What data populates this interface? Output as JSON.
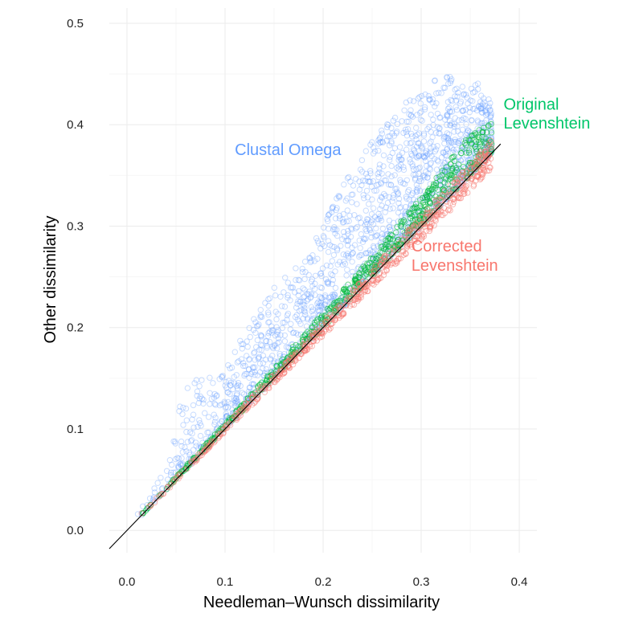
{
  "chart_data": {
    "type": "scatter",
    "xlabel": "Needleman–Wunsch dissimilarity",
    "ylabel": "Other dissimilarity",
    "xlim": [
      -0.018,
      0.418
    ],
    "ylim": [
      -0.022,
      0.515
    ],
    "x_ticks": [
      "0.0",
      "0.1",
      "0.2",
      "0.3",
      "0.4"
    ],
    "y_ticks": [
      "0.0",
      "0.1",
      "0.2",
      "0.3",
      "0.4",
      "0.5"
    ],
    "grid": true,
    "legend": "none",
    "reference_line": {
      "slope": 1,
      "intercept": 0,
      "x_range": [
        -0.018,
        0.381
      ]
    },
    "series": [
      {
        "name": "Clustal Omega",
        "color": "#619CFF",
        "marker": "open-circle",
        "bands": [
          {
            "x": 0.005,
            "y_min": 0.005,
            "y_max": 0.006
          },
          {
            "x": 0.02,
            "y_min": 0.02,
            "y_max": 0.032
          },
          {
            "x": 0.04,
            "y_min": 0.04,
            "y_max": 0.06
          },
          {
            "x": 0.06,
            "y_min": 0.06,
            "y_max": 0.15
          },
          {
            "x": 0.08,
            "y_min": 0.08,
            "y_max": 0.15
          },
          {
            "x": 0.1,
            "y_min": 0.1,
            "y_max": 0.16
          },
          {
            "x": 0.12,
            "y_min": 0.12,
            "y_max": 0.195
          },
          {
            "x": 0.14,
            "y_min": 0.14,
            "y_max": 0.23
          },
          {
            "x": 0.16,
            "y_min": 0.16,
            "y_max": 0.25
          },
          {
            "x": 0.18,
            "y_min": 0.18,
            "y_max": 0.27
          },
          {
            "x": 0.2,
            "y_min": 0.2,
            "y_max": 0.3
          },
          {
            "x": 0.22,
            "y_min": 0.22,
            "y_max": 0.34
          },
          {
            "x": 0.24,
            "y_min": 0.24,
            "y_max": 0.37
          },
          {
            "x": 0.26,
            "y_min": 0.26,
            "y_max": 0.4
          },
          {
            "x": 0.28,
            "y_min": 0.28,
            "y_max": 0.42
          },
          {
            "x": 0.3,
            "y_min": 0.3,
            "y_max": 0.43
          },
          {
            "x": 0.32,
            "y_min": 0.32,
            "y_max": 0.45
          },
          {
            "x": 0.34,
            "y_min": 0.34,
            "y_max": 0.445
          },
          {
            "x": 0.36,
            "y_min": 0.36,
            "y_max": 0.44
          },
          {
            "x": 0.372,
            "y_min": 0.372,
            "y_max": 0.42
          }
        ]
      },
      {
        "name": "Original Levenshtein",
        "color": "#00BA38",
        "marker": "open-circle",
        "bands": [
          {
            "x": 0.005,
            "y_min": 0.005,
            "y_max": 0.005
          },
          {
            "x": 0.05,
            "y_min": 0.05,
            "y_max": 0.053
          },
          {
            "x": 0.1,
            "y_min": 0.1,
            "y_max": 0.106
          },
          {
            "x": 0.15,
            "y_min": 0.15,
            "y_max": 0.16
          },
          {
            "x": 0.2,
            "y_min": 0.2,
            "y_max": 0.215
          },
          {
            "x": 0.25,
            "y_min": 0.25,
            "y_max": 0.27
          },
          {
            "x": 0.3,
            "y_min": 0.3,
            "y_max": 0.33
          },
          {
            "x": 0.35,
            "y_min": 0.35,
            "y_max": 0.39
          },
          {
            "x": 0.372,
            "y_min": 0.372,
            "y_max": 0.405
          }
        ]
      },
      {
        "name": "Corrected Levenshtein",
        "color": "#F8766D",
        "marker": "open-circle",
        "bands": [
          {
            "x": 0.01,
            "y_min": 0.01,
            "y_max": 0.012
          },
          {
            "x": 0.05,
            "y_min": 0.048,
            "y_max": 0.052
          },
          {
            "x": 0.1,
            "y_min": 0.097,
            "y_max": 0.103
          },
          {
            "x": 0.15,
            "y_min": 0.145,
            "y_max": 0.155
          },
          {
            "x": 0.2,
            "y_min": 0.192,
            "y_max": 0.206
          },
          {
            "x": 0.25,
            "y_min": 0.24,
            "y_max": 0.258
          },
          {
            "x": 0.3,
            "y_min": 0.287,
            "y_max": 0.31
          },
          {
            "x": 0.35,
            "y_min": 0.335,
            "y_max": 0.362
          },
          {
            "x": 0.372,
            "y_min": 0.356,
            "y_max": 0.385
          }
        ]
      }
    ],
    "annotations": [
      {
        "text": "Clustal Omega",
        "color": "#619CFF",
        "x": 0.11,
        "y": 0.37
      },
      {
        "text": "Original",
        "color": "#00C66A",
        "x": 0.384,
        "y": 0.415
      },
      {
        "text": "Levenshtein",
        "color": "#00C66A",
        "x": 0.384,
        "y": 0.396
      },
      {
        "text": "Corrected",
        "color": "#F8766D",
        "x": 0.29,
        "y": 0.275
      },
      {
        "text": "Levenshtein",
        "color": "#F8766D",
        "x": 0.29,
        "y": 0.256
      }
    ]
  }
}
